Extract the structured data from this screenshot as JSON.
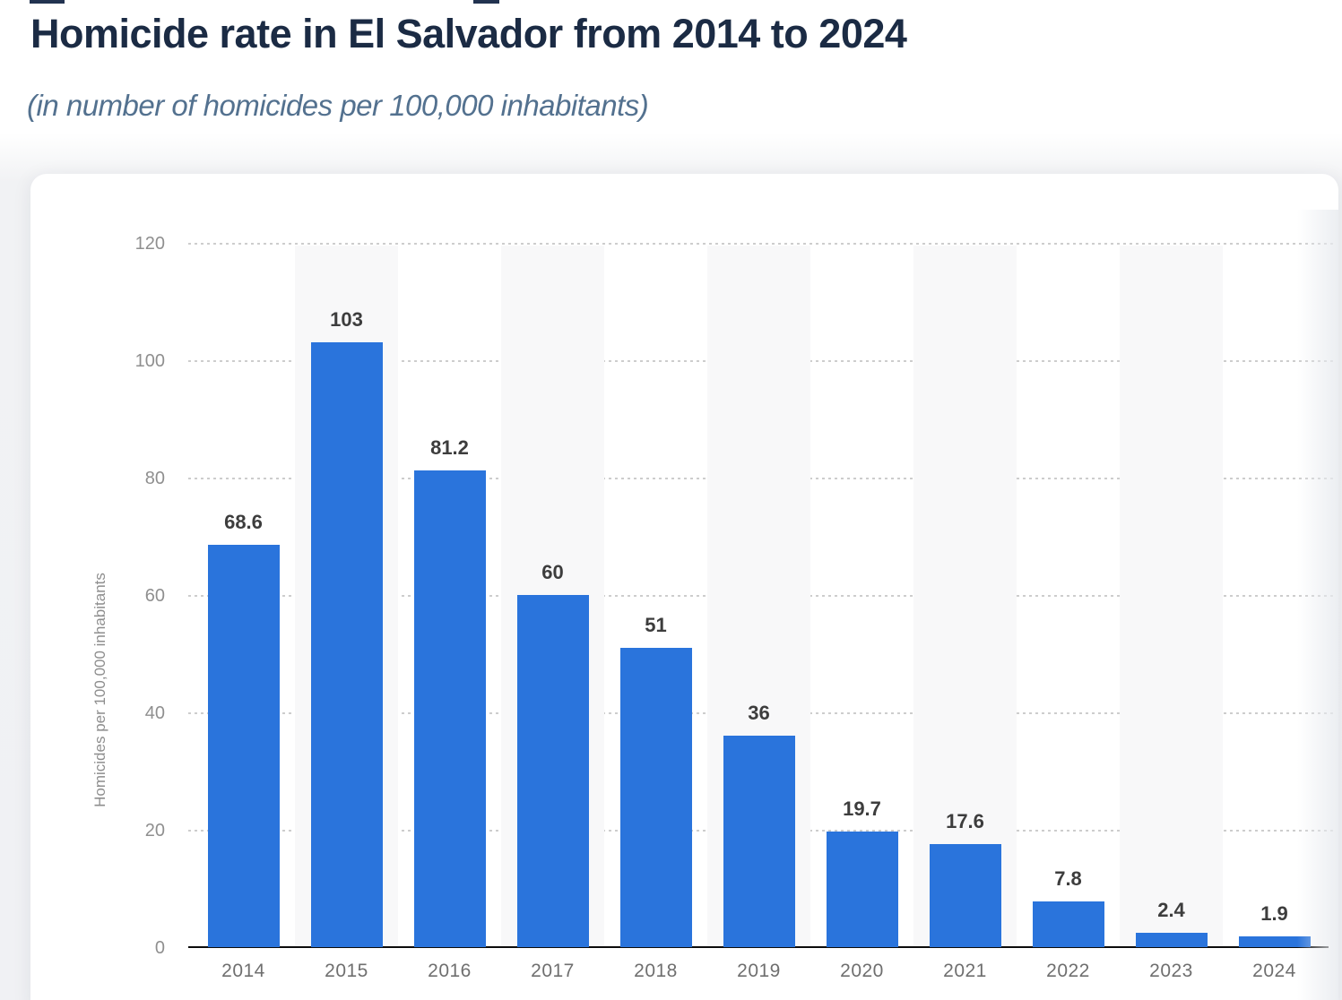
{
  "page": {
    "title": "Homicide rate in El Salvador from 2014 to 2024",
    "subtitle": "(in number of homicides per 100,000 inhabitants)"
  },
  "chart_data": {
    "type": "bar",
    "title": "Homicide rate in El Salvador from 2014 to 2024",
    "subtitle": "(in number of homicides per 100,000 inhabitants)",
    "categories": [
      "2014",
      "2015",
      "2016",
      "2017",
      "2018",
      "2019",
      "2020",
      "2021",
      "2022",
      "2023",
      "2024"
    ],
    "values": [
      68.6,
      103,
      81.2,
      60,
      51,
      36,
      19.7,
      17.6,
      7.8,
      2.4,
      1.9
    ],
    "value_labels": [
      "68.6",
      "103",
      "81.2",
      "60",
      "51",
      "36",
      "19.7",
      "17.6",
      "7.8",
      "2.4",
      "1.9"
    ],
    "xlabel": "",
    "ylabel": "Homicides per 100,000 inhabitants",
    "ylim": [
      0,
      120
    ],
    "yticks": [
      0,
      20,
      40,
      60,
      80,
      100,
      120
    ],
    "grid": "horizontal-dotted",
    "legend_position": "none",
    "plot_background": "alternating vertical stripes on odd columns"
  },
  "colors": {
    "bar": "#2a74dc",
    "title_text": "#1b2b44",
    "subtitle_text": "#53718f",
    "value_label_text": "#3d3d3d",
    "axis_tick_text": "#8f8f8f",
    "category_text": "#6f6f6f",
    "gridline": "#cdcdcd",
    "axis_line": "#0c0c0c",
    "column_stripe": "#f8f8f9",
    "card_background": "#ffffff",
    "page_background": "#f0f1f4"
  }
}
